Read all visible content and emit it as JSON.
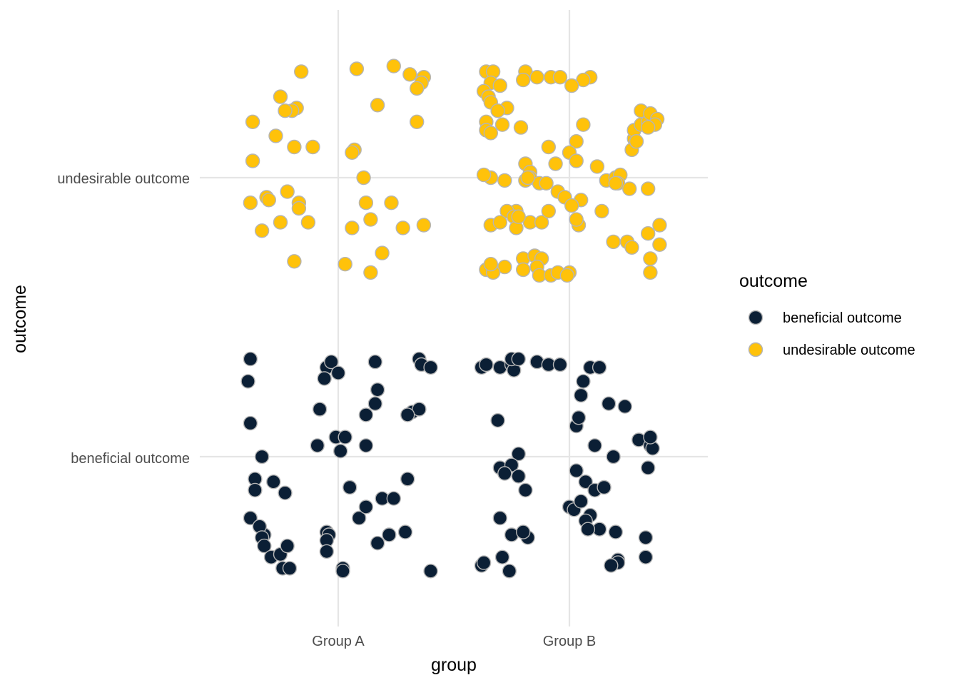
{
  "chart_data": {
    "type": "scatter",
    "subtype": "jitter",
    "title": "",
    "xlabel": "group",
    "ylabel": "outcome",
    "x_categories": [
      "Group A",
      "Group B"
    ],
    "y_categories": [
      "beneficial outcome",
      "undesirable outcome"
    ],
    "grid": true,
    "legend": {
      "title": "outcome",
      "position": "right",
      "entries": [
        "beneficial outcome",
        "undesirable outcome"
      ]
    },
    "colors": {
      "beneficial outcome": "#0b1f35",
      "undesirable outcome": "#ffc20a",
      "point_outline": "#b5b5b5",
      "grid": "#e5e5e5"
    },
    "note": "x and y are jittered positions on categorical axes (Group A = 1, Group B = 2; beneficial outcome = 1, undesirable outcome = 2)",
    "series": [
      {
        "name": "beneficial outcome",
        "points": [
          [
            0.62,
            1.35
          ],
          [
            0.61,
            1.27
          ],
          [
            0.62,
            1.12
          ],
          [
            0.67,
            1.0
          ],
          [
            0.64,
            0.92
          ],
          [
            0.64,
            0.88
          ],
          [
            0.62,
            0.78
          ],
          [
            0.68,
            0.72
          ],
          [
            0.66,
            0.75
          ],
          [
            0.67,
            0.71
          ],
          [
            0.68,
            0.68
          ],
          [
            0.72,
            0.91
          ],
          [
            0.77,
            0.87
          ],
          [
            0.71,
            0.64
          ],
          [
            0.75,
            0.65
          ],
          [
            0.78,
            0.68
          ],
          [
            0.76,
            0.6
          ],
          [
            0.79,
            0.6
          ],
          [
            0.95,
            1.32
          ],
          [
            0.97,
            1.34
          ],
          [
            1.0,
            1.3
          ],
          [
            0.94,
            1.28
          ],
          [
            0.92,
            1.17
          ],
          [
            0.99,
            1.07
          ],
          [
            1.03,
            1.07
          ],
          [
            0.91,
            1.04
          ],
          [
            1.01,
            1.02
          ],
          [
            0.95,
            0.73
          ],
          [
            0.96,
            0.72
          ],
          [
            0.95,
            0.7
          ],
          [
            0.95,
            0.66
          ],
          [
            1.02,
            0.6
          ],
          [
            1.02,
            0.59
          ],
          [
            1.05,
            0.89
          ],
          [
            1.09,
            0.78
          ],
          [
            1.12,
            0.82
          ],
          [
            1.16,
            1.34
          ],
          [
            1.17,
            1.24
          ],
          [
            1.16,
            1.19
          ],
          [
            1.12,
            1.15
          ],
          [
            1.12,
            1.04
          ],
          [
            1.19,
            0.85
          ],
          [
            1.24,
            0.85
          ],
          [
            1.22,
            0.72
          ],
          [
            1.17,
            0.69
          ],
          [
            1.32,
            1.16
          ],
          [
            1.35,
            1.17
          ],
          [
            1.3,
            1.15
          ],
          [
            1.3,
            0.92
          ],
          [
            1.29,
            0.73
          ],
          [
            1.35,
            1.35
          ],
          [
            1.36,
            1.33
          ],
          [
            1.4,
            1.32
          ],
          [
            1.4,
            0.59
          ],
          [
            1.62,
            1.32
          ],
          [
            1.64,
            1.33
          ],
          [
            1.7,
            1.32
          ],
          [
            1.75,
            1.33
          ],
          [
            1.76,
            1.31
          ],
          [
            1.75,
            1.35
          ],
          [
            1.78,
            1.35
          ],
          [
            1.86,
            1.34
          ],
          [
            1.69,
            1.13
          ],
          [
            1.7,
            0.96
          ],
          [
            1.78,
            1.01
          ],
          [
            1.75,
            0.97
          ],
          [
            1.78,
            0.93
          ],
          [
            1.72,
            0.94
          ],
          [
            1.81,
            0.88
          ],
          [
            1.7,
            0.78
          ],
          [
            1.71,
            0.64
          ],
          [
            1.62,
            0.61
          ],
          [
            1.63,
            0.62
          ],
          [
            1.75,
            0.72
          ],
          [
            1.82,
            0.71
          ],
          [
            1.8,
            0.73
          ],
          [
            1.74,
            0.59
          ],
          [
            1.91,
            1.33
          ],
          [
            1.96,
            1.33
          ],
          [
            2.06,
            1.27
          ],
          [
            2.05,
            1.22
          ],
          [
            2.03,
            1.11
          ],
          [
            2.04,
            1.14
          ],
          [
            2.11,
            1.04
          ],
          [
            2.09,
            1.32
          ],
          [
            2.13,
            1.32
          ],
          [
            2.17,
            1.19
          ],
          [
            2.03,
            0.95
          ],
          [
            2.07,
            0.91
          ],
          [
            2.0,
            0.82
          ],
          [
            2.02,
            0.81
          ],
          [
            2.05,
            0.84
          ],
          [
            2.09,
            0.79
          ],
          [
            2.11,
            0.88
          ],
          [
            2.07,
            0.77
          ],
          [
            2.13,
            0.74
          ],
          [
            2.08,
            0.74
          ],
          [
            2.15,
            0.89
          ],
          [
            2.24,
            1.18
          ],
          [
            2.3,
            1.06
          ],
          [
            2.35,
            1.04
          ],
          [
            2.36,
            1.03
          ],
          [
            2.34,
            0.96
          ],
          [
            2.19,
            1.0
          ],
          [
            2.2,
            0.73
          ],
          [
            2.21,
            0.63
          ],
          [
            2.21,
            0.62
          ],
          [
            2.18,
            0.61
          ],
          [
            2.33,
            0.64
          ],
          [
            2.33,
            0.71
          ],
          [
            2.35,
            1.07
          ]
        ]
      },
      {
        "name": "undesirable outcome",
        "points": [
          [
            0.84,
            2.38
          ],
          [
            0.75,
            2.29
          ],
          [
            0.82,
            2.25
          ],
          [
            0.8,
            2.24
          ],
          [
            0.77,
            2.24
          ],
          [
            0.63,
            2.2
          ],
          [
            0.73,
            2.15
          ],
          [
            0.81,
            2.11
          ],
          [
            0.63,
            2.06
          ],
          [
            0.62,
            1.91
          ],
          [
            0.69,
            1.93
          ],
          [
            0.7,
            1.92
          ],
          [
            0.78,
            1.95
          ],
          [
            0.83,
            1.91
          ],
          [
            0.83,
            1.89
          ],
          [
            0.75,
            1.84
          ],
          [
            0.87,
            1.84
          ],
          [
            0.67,
            1.81
          ],
          [
            0.81,
            1.7
          ],
          [
            1.08,
            2.39
          ],
          [
            1.24,
            2.4
          ],
          [
            1.31,
            2.37
          ],
          [
            1.37,
            2.36
          ],
          [
            1.36,
            2.34
          ],
          [
            1.34,
            2.32
          ],
          [
            1.17,
            2.26
          ],
          [
            1.34,
            2.2
          ],
          [
            0.89,
            2.11
          ],
          [
            1.07,
            2.1
          ],
          [
            1.06,
            2.09
          ],
          [
            1.11,
            2.0
          ],
          [
            1.12,
            1.91
          ],
          [
            1.23,
            1.91
          ],
          [
            1.14,
            1.85
          ],
          [
            1.06,
            1.82
          ],
          [
            1.28,
            1.82
          ],
          [
            1.37,
            1.83
          ],
          [
            1.19,
            1.73
          ],
          [
            1.03,
            1.69
          ],
          [
            1.14,
            1.66
          ],
          [
            1.64,
            2.38
          ],
          [
            1.67,
            2.38
          ],
          [
            1.81,
            2.38
          ],
          [
            1.8,
            2.35
          ],
          [
            1.86,
            2.36
          ],
          [
            1.66,
            2.34
          ],
          [
            1.7,
            2.33
          ],
          [
            1.63,
            2.31
          ],
          [
            1.65,
            2.29
          ],
          [
            1.66,
            2.27
          ],
          [
            1.73,
            2.25
          ],
          [
            1.69,
            2.24
          ],
          [
            1.64,
            2.2
          ],
          [
            1.71,
            2.19
          ],
          [
            1.79,
            2.18
          ],
          [
            1.64,
            2.17
          ],
          [
            1.66,
            2.16
          ],
          [
            1.92,
            2.36
          ],
          [
            1.96,
            2.36
          ],
          [
            2.09,
            2.36
          ],
          [
            2.06,
            2.35
          ],
          [
            2.01,
            2.33
          ],
          [
            2.06,
            2.19
          ],
          [
            2.03,
            2.13
          ],
          [
            1.91,
            2.11
          ],
          [
            1.81,
            2.05
          ],
          [
            1.94,
            2.05
          ],
          [
            1.83,
            2.02
          ],
          [
            1.83,
            2.0
          ],
          [
            1.81,
            1.99
          ],
          [
            1.66,
            2.0
          ],
          [
            1.63,
            2.01
          ],
          [
            1.87,
            1.98
          ],
          [
            1.9,
            1.98
          ],
          [
            1.72,
            1.99
          ],
          [
            1.82,
            2.0
          ],
          [
            2.0,
            2.09
          ],
          [
            2.03,
            2.06
          ],
          [
            2.12,
            2.04
          ],
          [
            2.16,
            1.99
          ],
          [
            2.2,
            2.0
          ],
          [
            2.22,
            2.01
          ],
          [
            2.21,
            1.98
          ],
          [
            2.2,
            1.98
          ],
          [
            2.27,
            2.1
          ],
          [
            2.28,
            2.14
          ],
          [
            2.28,
            2.17
          ],
          [
            2.31,
            2.19
          ],
          [
            2.31,
            2.24
          ],
          [
            2.34,
            2.2
          ],
          [
            2.35,
            2.23
          ],
          [
            2.38,
            2.21
          ],
          [
            2.37,
            2.19
          ],
          [
            2.34,
            2.18
          ],
          [
            2.29,
            2.13
          ],
          [
            1.95,
            1.95
          ],
          [
            1.98,
            1.93
          ],
          [
            2.05,
            1.92
          ],
          [
            2.01,
            1.9
          ],
          [
            1.77,
            1.88
          ],
          [
            1.73,
            1.88
          ],
          [
            1.76,
            1.86
          ],
          [
            1.83,
            1.84
          ],
          [
            1.66,
            1.83
          ],
          [
            1.7,
            1.84
          ],
          [
            1.77,
            1.82
          ],
          [
            1.78,
            1.86
          ],
          [
            1.88,
            1.84
          ],
          [
            1.91,
            1.88
          ],
          [
            2.04,
            1.83
          ],
          [
            2.03,
            1.85
          ],
          [
            2.14,
            1.88
          ],
          [
            2.26,
            1.96
          ],
          [
            2.34,
            1.96
          ],
          [
            2.39,
            1.83
          ],
          [
            2.34,
            1.8
          ],
          [
            2.39,
            1.76
          ],
          [
            2.25,
            1.77
          ],
          [
            2.19,
            1.77
          ],
          [
            2.27,
            1.75
          ],
          [
            1.8,
            1.71
          ],
          [
            1.85,
            1.72
          ],
          [
            1.88,
            1.71
          ],
          [
            1.86,
            1.68
          ],
          [
            1.8,
            1.67
          ],
          [
            1.72,
            1.68
          ],
          [
            1.64,
            1.67
          ],
          [
            1.67,
            1.66
          ],
          [
            1.66,
            1.69
          ],
          [
            1.87,
            1.65
          ],
          [
            1.92,
            1.65
          ],
          [
            1.95,
            1.66
          ],
          [
            2.35,
            1.71
          ],
          [
            2.35,
            1.66
          ],
          [
            2.0,
            1.66
          ],
          [
            1.99,
            1.65
          ]
        ]
      }
    ]
  }
}
